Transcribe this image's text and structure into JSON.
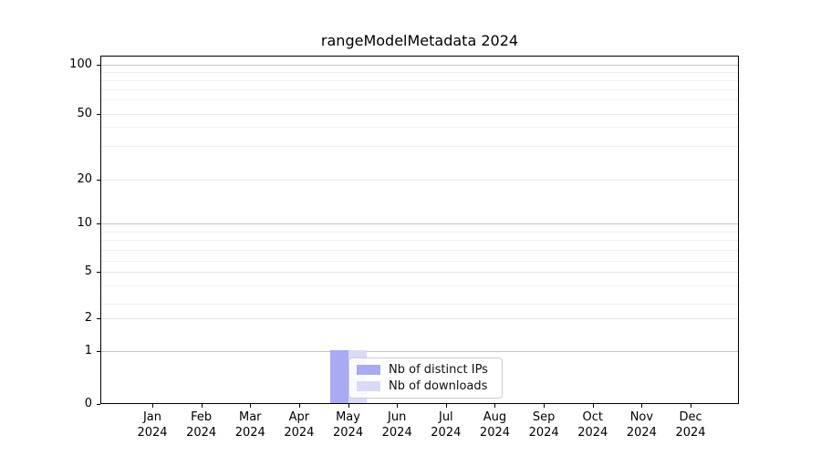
{
  "chart_data": {
    "type": "bar",
    "title": "rangeModelMetadata 2024",
    "x_year_label": "2024",
    "categories": [
      "Jan",
      "Feb",
      "Mar",
      "Apr",
      "May",
      "Jun",
      "Jul",
      "Aug",
      "Sep",
      "Oct",
      "Nov",
      "Dec"
    ],
    "series": [
      {
        "name": "Nb of distinct IPs",
        "color": "#a9aaf2",
        "values": [
          0,
          0,
          0,
          0,
          1,
          0,
          0,
          0,
          0,
          0,
          0,
          0
        ]
      },
      {
        "name": "Nb of downloads",
        "color": "#d9daf7",
        "values": [
          0,
          0,
          0,
          0,
          1,
          0,
          0,
          0,
          0,
          0,
          0,
          0
        ]
      }
    ],
    "y_ticks": [
      0,
      1,
      2,
      5,
      10,
      20,
      50,
      100
    ],
    "y_scale": "symlog",
    "ylim": [
      0,
      115
    ],
    "xlabel": "",
    "ylabel": "",
    "grid": "horizontal, log minor gridlines",
    "legend_position": "inside bottom-center",
    "background_color": "#ffffff"
  }
}
